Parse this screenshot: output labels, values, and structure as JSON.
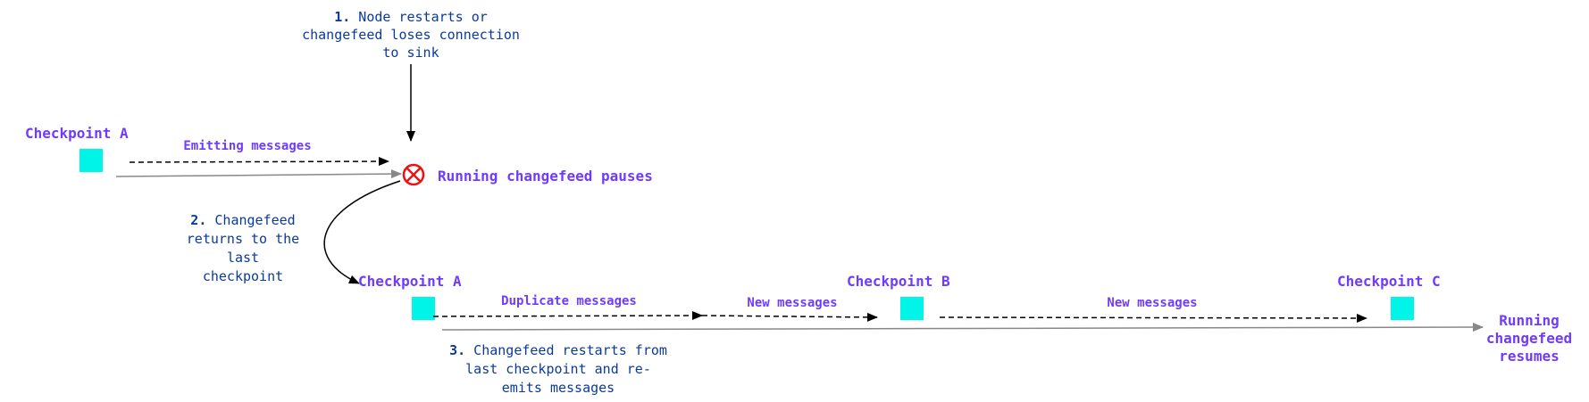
{
  "colors": {
    "label": "#6f3cff",
    "note": "#0b3a9e",
    "checkpoint": "#00f5e8",
    "error": "#ee1111",
    "flow": "#888888"
  },
  "step1": {
    "num": "1.",
    "lines": [
      "Node restarts or",
      "changefeed loses connection",
      "to sink"
    ]
  },
  "step2": {
    "num": "2.",
    "lines": [
      "Changefeed",
      "returns to the",
      "last",
      "checkpoint"
    ]
  },
  "step3": {
    "num": "3.",
    "lines": [
      "Changefeed restarts from",
      "last checkpoint and re-",
      "emits messages"
    ]
  },
  "top_row": {
    "checkpoint": "Checkpoint A",
    "emitting": "Emitting messages",
    "pause": "Running changefeed pauses",
    "pause_icon": "error-x-circle-icon"
  },
  "bottom_row": {
    "checkpoints": [
      "Checkpoint A",
      "Checkpoint B",
      "Checkpoint C"
    ],
    "segments": [
      "Duplicate messages",
      "New messages",
      "New messages"
    ],
    "resume": [
      "Running",
      "changefeed",
      "resumes"
    ]
  }
}
